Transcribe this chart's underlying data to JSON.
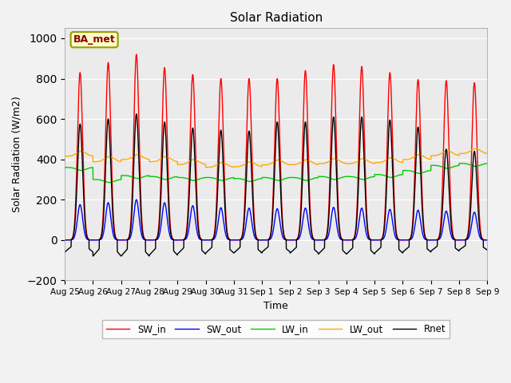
{
  "title": "Solar Radiation",
  "xlabel": "Time",
  "ylabel": "Solar Radiation (W/m2)",
  "ylim": [
    -200,
    1050
  ],
  "yticks": [
    -200,
    0,
    200,
    400,
    600,
    800,
    1000
  ],
  "annotation": "BA_met",
  "xtick_labels": [
    "Aug 25",
    "Aug 26",
    "Aug 27",
    "Aug 28",
    "Aug 29",
    "Aug 30",
    "Aug 31",
    "Sep 1",
    "Sep 2",
    "Sep 3",
    "Sep 4",
    "Sep 5",
    "Sep 6",
    "Sep 7",
    "Sep 8",
    "Sep 9"
  ],
  "series": {
    "SW_in": {
      "color": "#ff0000",
      "label": "SW_in"
    },
    "SW_out": {
      "color": "#0000ff",
      "label": "SW_out"
    },
    "LW_in": {
      "color": "#00cc00",
      "label": "LW_in"
    },
    "LW_out": {
      "color": "#ffaa00",
      "label": "LW_out"
    },
    "Rnet": {
      "color": "#000000",
      "label": "Rnet"
    }
  },
  "SW_in_peaks": [
    830,
    880,
    920,
    855,
    820,
    800,
    800,
    800,
    840,
    870,
    860,
    830,
    795,
    790,
    780
  ],
  "SW_out_peaks": [
    175,
    185,
    200,
    185,
    170,
    160,
    158,
    155,
    158,
    162,
    158,
    152,
    148,
    143,
    138
  ],
  "LW_in_baseline": [
    360,
    300,
    320,
    315,
    310,
    310,
    305,
    310,
    310,
    315,
    315,
    325,
    345,
    370,
    380
  ],
  "LW_out_baseline": [
    415,
    388,
    398,
    388,
    374,
    360,
    363,
    372,
    373,
    378,
    378,
    383,
    398,
    418,
    428
  ],
  "Rnet_peaks": [
    575,
    600,
    625,
    585,
    555,
    545,
    540,
    585,
    585,
    610,
    610,
    595,
    560,
    450,
    440
  ],
  "Rnet_night": [
    -60,
    -80,
    -80,
    -75,
    -70,
    -65,
    -65,
    -60,
    -65,
    -70,
    -70,
    -65,
    -60,
    -55,
    -50
  ],
  "background_color": "#ebebeb",
  "fig_facecolor": "#f2f2f2",
  "figsize": [
    6.4,
    4.8
  ],
  "dpi": 100
}
